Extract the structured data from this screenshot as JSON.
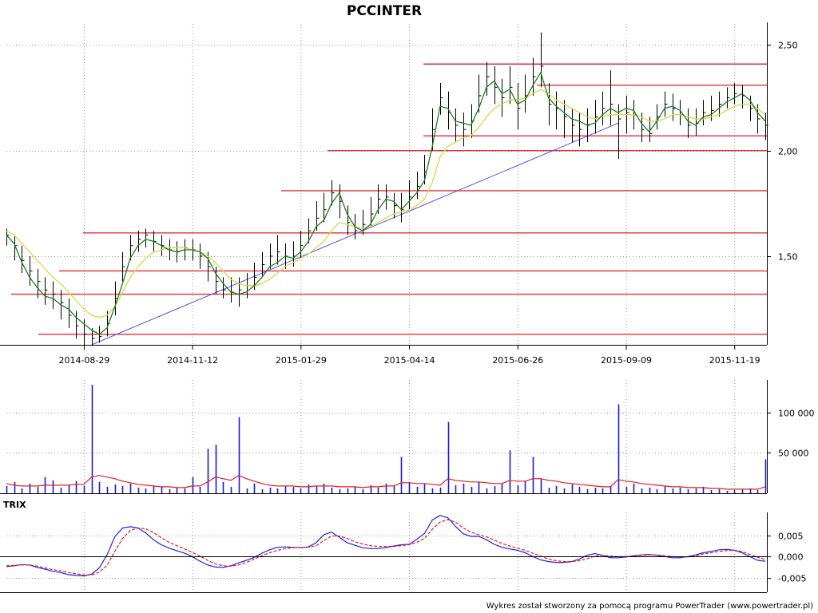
{
  "title": "PCCINTER",
  "footer": "Wykres został stworzony za pomocą programu PowerTrader (www.powertrader.pl)",
  "colors": {
    "price_bar": "#000000",
    "ma_short": "#1a7f1a",
    "ma_long": "#d8d84a",
    "support_lines": "#e0303a",
    "trendline": "#5050e0",
    "volume_bar": "#1a1ad0",
    "volume_avg": "#e02020",
    "trix": "#2020e0",
    "trix_signal": "#e02020"
  },
  "chart_data": [
    {
      "id": "price",
      "type": "line",
      "title": "PCCINTER",
      "x_tick_labels": [
        "2014-08-29",
        "2014-11-12",
        "2015-01-29",
        "2015-04-14",
        "2015-06-26",
        "2015-09-09",
        "2015-11-19"
      ],
      "y_tick_labels": [
        "2,50",
        "2,00",
        "1,50"
      ],
      "y_ticks": [
        2.5,
        2.0,
        1.5
      ],
      "ylim": [
        1.08,
        2.6
      ],
      "grid": true,
      "series": [
        {
          "role": "ma_short",
          "y": [
            1.6,
            1.56,
            1.47,
            1.4,
            1.35,
            1.31,
            1.3,
            1.27,
            1.25,
            1.21,
            1.18,
            1.15,
            1.13,
            1.16,
            1.26,
            1.37,
            1.49,
            1.55,
            1.58,
            1.57,
            1.55,
            1.53,
            1.52,
            1.53,
            1.53,
            1.52,
            1.49,
            1.42,
            1.37,
            1.33,
            1.32,
            1.33,
            1.36,
            1.4,
            1.45,
            1.47,
            1.5,
            1.49,
            1.52,
            1.57,
            1.64,
            1.67,
            1.75,
            1.8,
            1.7,
            1.64,
            1.62,
            1.65,
            1.72,
            1.77,
            1.76,
            1.72,
            1.76,
            1.8,
            1.86,
            2.02,
            2.21,
            2.2,
            2.14,
            2.13,
            2.12,
            2.2,
            2.3,
            2.33,
            2.27,
            2.29,
            2.22,
            2.24,
            2.31,
            2.37,
            2.25,
            2.21,
            2.18,
            2.15,
            2.14,
            2.12,
            2.13,
            2.17,
            2.2,
            2.18,
            2.2,
            2.19,
            2.13,
            2.09,
            2.14,
            2.2,
            2.21,
            2.19,
            2.14,
            2.12,
            2.16,
            2.17,
            2.2,
            2.23,
            2.25,
            2.27,
            2.24,
            2.18,
            2.14
          ]
        },
        {
          "role": "ma_long",
          "y": [
            1.62,
            1.6,
            1.56,
            1.52,
            1.48,
            1.44,
            1.4,
            1.37,
            1.33,
            1.29,
            1.25,
            1.22,
            1.21,
            1.22,
            1.26,
            1.33,
            1.4,
            1.45,
            1.49,
            1.52,
            1.53,
            1.54,
            1.54,
            1.54,
            1.53,
            1.52,
            1.5,
            1.47,
            1.43,
            1.39,
            1.37,
            1.36,
            1.36,
            1.37,
            1.39,
            1.42,
            1.45,
            1.47,
            1.49,
            1.51,
            1.54,
            1.57,
            1.62,
            1.66,
            1.65,
            1.64,
            1.63,
            1.64,
            1.66,
            1.68,
            1.7,
            1.71,
            1.72,
            1.74,
            1.77,
            1.85,
            1.97,
            2.02,
            2.04,
            2.06,
            2.07,
            2.11,
            2.16,
            2.2,
            2.22,
            2.24,
            2.24,
            2.25,
            2.27,
            2.29,
            2.27,
            2.24,
            2.22,
            2.2,
            2.18,
            2.16,
            2.15,
            2.16,
            2.17,
            2.17,
            2.17,
            2.17,
            2.16,
            2.14,
            2.14,
            2.15,
            2.17,
            2.17,
            2.16,
            2.15,
            2.15,
            2.16,
            2.17,
            2.19,
            2.21,
            2.22,
            2.22,
            2.2,
            2.17
          ]
        }
      ],
      "support_levels": [
        2.41,
        2.31,
        2.07,
        2.0,
        1.81,
        1.61,
        1.43,
        1.32,
        1.13
      ],
      "trendline": {
        "from": 1.08,
        "to": 2.13
      },
      "bars": {
        "close": [
          1.6,
          1.55,
          1.48,
          1.43,
          1.38,
          1.34,
          1.32,
          1.28,
          1.22,
          1.17,
          1.13,
          1.11,
          1.12,
          1.18,
          1.3,
          1.45,
          1.55,
          1.58,
          1.6,
          1.57,
          1.55,
          1.53,
          1.52,
          1.54,
          1.53,
          1.5,
          1.45,
          1.38,
          1.34,
          1.33,
          1.34,
          1.36,
          1.4,
          1.46,
          1.5,
          1.52,
          1.5,
          1.5,
          1.55,
          1.62,
          1.68,
          1.72,
          1.8,
          1.76,
          1.66,
          1.62,
          1.65,
          1.7,
          1.77,
          1.78,
          1.74,
          1.72,
          1.78,
          1.83,
          1.9,
          2.1,
          2.25,
          2.18,
          2.12,
          2.1,
          2.14,
          2.26,
          2.35,
          2.3,
          2.25,
          2.3,
          2.2,
          2.26,
          2.35,
          2.4,
          2.22,
          2.2,
          2.16,
          2.12,
          2.1,
          2.12,
          2.16,
          2.2,
          2.22,
          2.15,
          2.18,
          2.17,
          2.1,
          2.08,
          2.16,
          2.22,
          2.2,
          2.17,
          2.12,
          2.13,
          2.18,
          2.19,
          2.22,
          2.25,
          2.27,
          2.26,
          2.2,
          2.15,
          2.12
        ],
        "high": [
          1.63,
          1.6,
          1.55,
          1.5,
          1.44,
          1.4,
          1.38,
          1.34,
          1.3,
          1.24,
          1.2,
          1.16,
          1.17,
          1.24,
          1.38,
          1.52,
          1.6,
          1.62,
          1.63,
          1.62,
          1.6,
          1.58,
          1.57,
          1.58,
          1.58,
          1.56,
          1.52,
          1.45,
          1.4,
          1.4,
          1.4,
          1.42,
          1.47,
          1.52,
          1.56,
          1.6,
          1.56,
          1.57,
          1.62,
          1.68,
          1.76,
          1.8,
          1.86,
          1.84,
          1.74,
          1.7,
          1.72,
          1.78,
          1.84,
          1.84,
          1.8,
          1.8,
          1.86,
          1.9,
          1.98,
          2.2,
          2.32,
          2.28,
          2.2,
          2.18,
          2.22,
          2.36,
          2.42,
          2.4,
          2.34,
          2.4,
          2.32,
          2.36,
          2.44,
          2.56,
          2.32,
          2.28,
          2.24,
          2.2,
          2.18,
          2.2,
          2.24,
          2.28,
          2.38,
          2.22,
          2.26,
          2.24,
          2.18,
          2.16,
          2.22,
          2.28,
          2.27,
          2.24,
          2.2,
          2.2,
          2.24,
          2.26,
          2.28,
          2.3,
          2.32,
          2.31,
          2.26,
          2.22,
          2.18
        ],
        "low": [
          1.55,
          1.48,
          1.42,
          1.36,
          1.3,
          1.27,
          1.25,
          1.2,
          1.16,
          1.11,
          1.08,
          1.08,
          1.09,
          1.12,
          1.22,
          1.38,
          1.48,
          1.52,
          1.54,
          1.52,
          1.5,
          1.48,
          1.47,
          1.48,
          1.48,
          1.44,
          1.38,
          1.32,
          1.3,
          1.28,
          1.26,
          1.3,
          1.34,
          1.4,
          1.44,
          1.46,
          1.44,
          1.45,
          1.49,
          1.56,
          1.62,
          1.66,
          1.74,
          1.68,
          1.6,
          1.58,
          1.6,
          1.64,
          1.7,
          1.72,
          1.68,
          1.66,
          1.72,
          1.77,
          1.84,
          2.0,
          2.17,
          2.1,
          2.04,
          2.02,
          2.06,
          2.18,
          2.26,
          2.22,
          2.16,
          2.22,
          2.1,
          2.18,
          2.26,
          2.3,
          2.12,
          2.1,
          2.06,
          2.04,
          2.02,
          2.04,
          2.08,
          2.12,
          2.12,
          1.96,
          2.08,
          2.1,
          2.04,
          2.04,
          2.1,
          2.16,
          2.14,
          2.12,
          2.06,
          2.07,
          2.12,
          2.14,
          2.16,
          2.2,
          2.22,
          2.2,
          2.14,
          2.08,
          2.05
        ]
      }
    },
    {
      "id": "volume",
      "type": "bar",
      "y_tick_labels": [
        "100 000",
        "50 000"
      ],
      "y_ticks": [
        100000,
        50000
      ],
      "ylim": [
        0,
        140000
      ],
      "values": [
        9000,
        14000,
        6000,
        12000,
        8000,
        20000,
        16000,
        7000,
        10000,
        15000,
        9000,
        134000,
        14000,
        8000,
        11000,
        9000,
        12000,
        7000,
        6000,
        9000,
        8000,
        5000,
        7000,
        6000,
        20000,
        8000,
        55000,
        60000,
        14000,
        8000,
        94000,
        6000,
        12000,
        5000,
        7000,
        6000,
        9000,
        8000,
        6000,
        11000,
        9000,
        12000,
        7000,
        5000,
        6000,
        8000,
        5000,
        10000,
        7000,
        12000,
        9000,
        45000,
        14000,
        8000,
        12000,
        6000,
        7000,
        88000,
        10000,
        12000,
        8000,
        14000,
        6000,
        9000,
        12000,
        53000,
        10000,
        15000,
        45000,
        18000,
        7000,
        9000,
        6000,
        11000,
        8000,
        5000,
        7000,
        6000,
        9000,
        110000,
        8000,
        12000,
        6000,
        7000,
        5000,
        9000,
        6000,
        7000,
        5000,
        6000,
        8000,
        4000,
        5000,
        3000,
        4000,
        5000,
        6000,
        4000,
        42000
      ],
      "avg": [
        12000,
        10000,
        9000,
        9000,
        9000,
        10000,
        10000,
        10000,
        10000,
        11000,
        11000,
        20000,
        22000,
        20000,
        18000,
        15000,
        13000,
        11000,
        10000,
        9000,
        8000,
        8000,
        7000,
        7000,
        9000,
        9000,
        14000,
        20000,
        18000,
        16000,
        22000,
        18000,
        15000,
        12000,
        10000,
        9000,
        9000,
        9000,
        8000,
        8000,
        9000,
        9000,
        9000,
        8000,
        8000,
        8000,
        7000,
        8000,
        8000,
        9000,
        9000,
        13000,
        13000,
        12000,
        12000,
        11000,
        10000,
        18000,
        16000,
        15000,
        14000,
        14000,
        13000,
        12000,
        12000,
        16000,
        15000,
        15000,
        18000,
        18000,
        16000,
        15000,
        13000,
        12000,
        11000,
        10000,
        9000,
        8000,
        8000,
        17000,
        15000,
        14000,
        12000,
        11000,
        10000,
        9000,
        8000,
        8000,
        7000,
        7000,
        7000,
        6000,
        6000,
        5000,
        5000,
        5000,
        5000,
        5000,
        8000
      ]
    },
    {
      "id": "trix",
      "type": "line",
      "title": "TRIX",
      "y_tick_labels": [
        "0,005",
        "0,000",
        "-0,005"
      ],
      "y_ticks": [
        0.005,
        0.0,
        -0.005
      ],
      "ylim": [
        -0.0085,
        0.0105
      ],
      "series": [
        {
          "role": "trix",
          "y": [
            -0.0024,
            -0.0022,
            -0.0019,
            -0.002,
            -0.0026,
            -0.003,
            -0.0035,
            -0.0038,
            -0.0043,
            -0.0045,
            -0.0046,
            -0.0042,
            -0.0027,
            0.0004,
            0.0047,
            0.0068,
            0.0071,
            0.0068,
            0.0056,
            0.004,
            0.0028,
            0.002,
            0.0014,
            0.0008,
            0.0,
            -0.0011,
            -0.002,
            -0.0025,
            -0.0026,
            -0.0022,
            -0.0015,
            -0.0009,
            -0.0002,
            0.0008,
            0.0016,
            0.0022,
            0.0023,
            0.0022,
            0.0021,
            0.0023,
            0.0033,
            0.0052,
            0.0058,
            0.0046,
            0.0033,
            0.0027,
            0.0021,
            0.0019,
            0.0019,
            0.0021,
            0.0025,
            0.0028,
            0.0029,
            0.0041,
            0.0055,
            0.0087,
            0.0098,
            0.0092,
            0.0072,
            0.0054,
            0.0048,
            0.0048,
            0.004,
            0.0029,
            0.0022,
            0.0018,
            0.0015,
            0.0009,
            0.0,
            -0.0008,
            -0.0012,
            -0.0014,
            -0.0014,
            -0.0012,
            -0.0006,
            0.0003,
            0.0007,
            0.0003,
            -0.0003,
            -0.0003,
            -0.0001,
            0.0002,
            0.0004,
            0.0005,
            0.0003,
            0.0,
            -0.0003,
            -0.0003,
            0.0,
            0.0004,
            0.0009,
            0.0012,
            0.0016,
            0.0017,
            0.0015,
            0.0009,
            0.0,
            -0.0009,
            -0.0011
          ]
        },
        {
          "role": "signal",
          "y": [
            -0.0022,
            -0.0021,
            -0.002,
            -0.002,
            -0.0023,
            -0.0027,
            -0.0031,
            -0.0034,
            -0.0038,
            -0.0041,
            -0.0044,
            -0.0044,
            -0.0037,
            -0.0021,
            0.0012,
            0.0043,
            0.0062,
            0.0068,
            0.0066,
            0.0057,
            0.0045,
            0.0034,
            0.0026,
            0.0018,
            0.001,
            0.0001,
            -0.0009,
            -0.0018,
            -0.0022,
            -0.0023,
            -0.002,
            -0.0014,
            -0.0006,
            0.0002,
            0.0009,
            0.0015,
            0.0019,
            0.0021,
            0.0022,
            0.0022,
            0.0026,
            0.0038,
            0.0049,
            0.0049,
            0.0043,
            0.0035,
            0.003,
            0.0026,
            0.0024,
            0.0024,
            0.0024,
            0.0026,
            0.0028,
            0.0034,
            0.0043,
            0.0065,
            0.0082,
            0.0088,
            0.0082,
            0.0068,
            0.0058,
            0.0052,
            0.0047,
            0.0039,
            0.0031,
            0.0025,
            0.002,
            0.0015,
            0.0008,
            0.0001,
            -0.0006,
            -0.001,
            -0.0012,
            -0.0012,
            -0.001,
            -0.0005,
            0.0001,
            0.0003,
            0.0001,
            0.0,
            0.0,
            0.0001,
            0.0003,
            0.0004,
            0.0004,
            0.0002,
            0.0,
            -0.0001,
            -0.0001,
            0.0002,
            0.0006,
            0.0009,
            0.0012,
            0.0014,
            0.0015,
            0.0012,
            0.0005,
            -0.0002,
            -0.0007
          ]
        }
      ]
    }
  ]
}
